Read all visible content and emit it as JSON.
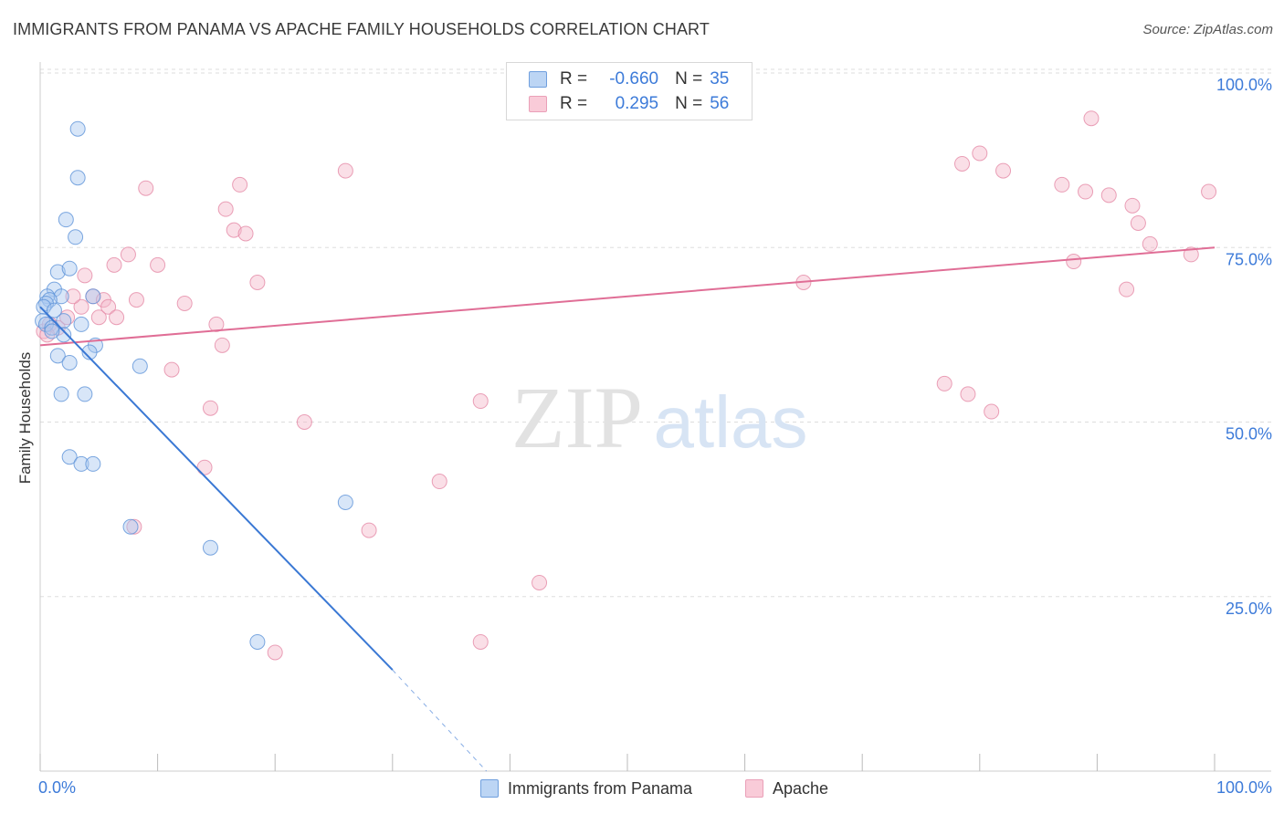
{
  "title": "IMMIGRANTS FROM PANAMA VS APACHE FAMILY HOUSEHOLDS CORRELATION CHART",
  "source": "Source: ZipAtlas.com",
  "watermark": {
    "zip": "ZIP",
    "atlas": "atlas"
  },
  "legend": {
    "rows": [
      {
        "r_label": "R =",
        "r_value": "-0.660",
        "n_label": "N =",
        "n_value": "35"
      },
      {
        "r_label": "R =",
        "r_value": "0.295",
        "n_label": "N =",
        "n_value": "56"
      }
    ]
  },
  "colors": {
    "blue_fill": "#a9c8f0",
    "blue_stroke": "#5d92d8",
    "blue_line": "#3a78d4",
    "pink_fill": "#f5b8c9",
    "pink_stroke": "#e58aa6",
    "pink_line": "#e06e96",
    "tick_label": "#3d7bd9",
    "grid": "#dddddd"
  },
  "chart_data": {
    "type": "scatter",
    "title": "IMMIGRANTS FROM PANAMA VS APACHE FAMILY HOUSEHOLDS CORRELATION CHART",
    "xlabel": "",
    "ylabel": "Family Households",
    "xlim": [
      0,
      100
    ],
    "ylim": [
      0,
      100
    ],
    "x_tick_labels": [
      "0.0%",
      "100.0%"
    ],
    "y_ticks": [
      25,
      50,
      75,
      100
    ],
    "y_tick_labels": [
      "25.0%",
      "50.0%",
      "75.0%",
      "100.0%"
    ],
    "legend_position": "bottom",
    "series": [
      {
        "name": "Immigrants from Panama",
        "color": "#5d92d8",
        "r": -0.66,
        "n": 35,
        "points": [
          [
            3.2,
            92.0
          ],
          [
            3.2,
            85.0
          ],
          [
            2.2,
            79.0
          ],
          [
            3.0,
            76.5
          ],
          [
            1.5,
            71.5
          ],
          [
            2.5,
            72.0
          ],
          [
            1.2,
            69.0
          ],
          [
            0.6,
            68.0
          ],
          [
            1.8,
            68.0
          ],
          [
            0.8,
            67.5
          ],
          [
            0.5,
            67.0
          ],
          [
            0.3,
            66.5
          ],
          [
            4.5,
            68.0
          ],
          [
            0.2,
            64.5
          ],
          [
            0.5,
            64.0
          ],
          [
            1.0,
            63.5
          ],
          [
            2.0,
            64.5
          ],
          [
            3.5,
            64.0
          ],
          [
            2.0,
            62.5
          ],
          [
            1.0,
            63.0
          ],
          [
            4.7,
            61.0
          ],
          [
            4.2,
            60.0
          ],
          [
            1.5,
            59.5
          ],
          [
            2.5,
            58.5
          ],
          [
            8.5,
            58.0
          ],
          [
            1.8,
            54.0
          ],
          [
            3.8,
            54.0
          ],
          [
            2.5,
            45.0
          ],
          [
            3.5,
            44.0
          ],
          [
            4.5,
            44.0
          ],
          [
            26.0,
            38.5
          ],
          [
            7.7,
            35.0
          ],
          [
            14.5,
            32.0
          ],
          [
            18.5,
            18.5
          ],
          [
            1.2,
            66.0
          ]
        ],
        "trend": {
          "x": [
            0.0,
            30.0
          ],
          "y": [
            66.5,
            14.5
          ],
          "dashed_to": [
            38.0,
            0.0
          ]
        }
      },
      {
        "name": "Apache",
        "color": "#e58aa6",
        "r": 0.295,
        "n": 56,
        "points": [
          [
            0.3,
            63.0
          ],
          [
            0.8,
            64.0
          ],
          [
            1.5,
            63.5
          ],
          [
            2.3,
            65.0
          ],
          [
            3.5,
            66.5
          ],
          [
            3.8,
            71.0
          ],
          [
            4.5,
            68.0
          ],
          [
            5.0,
            65.0
          ],
          [
            5.4,
            67.5
          ],
          [
            5.8,
            66.5
          ],
          [
            6.5,
            65.0
          ],
          [
            2.8,
            68.0
          ],
          [
            6.3,
            72.5
          ],
          [
            7.5,
            74.0
          ],
          [
            8.2,
            67.5
          ],
          [
            9.0,
            83.5
          ],
          [
            10.0,
            72.5
          ],
          [
            11.2,
            57.5
          ],
          [
            12.3,
            67.0
          ],
          [
            14.0,
            43.5
          ],
          [
            14.5,
            52.0
          ],
          [
            15.0,
            64.0
          ],
          [
            15.5,
            61.0
          ],
          [
            15.8,
            80.5
          ],
          [
            16.5,
            77.5
          ],
          [
            17.0,
            84.0
          ],
          [
            17.5,
            77.0
          ],
          [
            18.5,
            70.0
          ],
          [
            20.0,
            17.0
          ],
          [
            22.5,
            50.0
          ],
          [
            26.0,
            86.0
          ],
          [
            28.0,
            34.5
          ],
          [
            34.0,
            41.5
          ],
          [
            37.5,
            18.5
          ],
          [
            37.5,
            53.0
          ],
          [
            42.5,
            27.0
          ],
          [
            8.0,
            35.0
          ],
          [
            65.0,
            70.0
          ],
          [
            77.0,
            55.5
          ],
          [
            78.5,
            87.0
          ],
          [
            79.0,
            54.0
          ],
          [
            80.0,
            88.5
          ],
          [
            81.0,
            51.5
          ],
          [
            82.0,
            86.0
          ],
          [
            87.0,
            84.0
          ],
          [
            88.0,
            73.0
          ],
          [
            89.0,
            83.0
          ],
          [
            89.5,
            93.5
          ],
          [
            91.0,
            82.5
          ],
          [
            92.5,
            69.0
          ],
          [
            93.0,
            81.0
          ],
          [
            93.5,
            78.5
          ],
          [
            94.5,
            75.5
          ],
          [
            98.0,
            74.0
          ],
          [
            99.5,
            83.0
          ],
          [
            0.6,
            62.5
          ]
        ],
        "trend": {
          "x": [
            0.0,
            100.0
          ],
          "y": [
            61.0,
            75.0
          ]
        }
      }
    ]
  }
}
